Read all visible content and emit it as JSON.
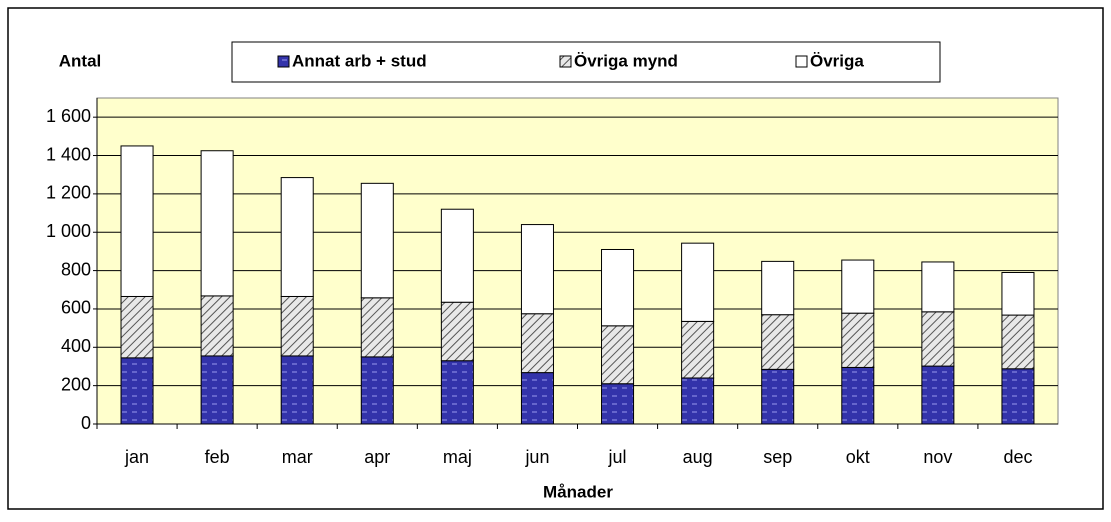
{
  "chart_data": {
    "type": "stacked_bar",
    "y_label": "Antal",
    "x_label": "Månader",
    "categories": [
      "jan",
      "feb",
      "mar",
      "apr",
      "maj",
      "jun",
      "jul",
      "aug",
      "sep",
      "okt",
      "nov",
      "dec"
    ],
    "series": [
      {
        "name": "Annat arb + stud",
        "color": "#3333aa",
        "pattern": "dashes",
        "values": [
          345,
          355,
          355,
          350,
          330,
          268,
          210,
          240,
          285,
          295,
          302,
          288
        ]
      },
      {
        "name": "Övriga mynd",
        "color": "#c0c0c0",
        "pattern": "hatch",
        "values": [
          320,
          313,
          310,
          308,
          305,
          307,
          302,
          295,
          285,
          283,
          283,
          280
        ]
      },
      {
        "name": "Övriga",
        "color": "#ffffff",
        "pattern": "none",
        "values": [
          785,
          757,
          620,
          597,
          485,
          465,
          398,
          408,
          278,
          277,
          260,
          222
        ]
      }
    ],
    "ylim": [
      0,
      1700
    ],
    "yticks": [
      0,
      200,
      400,
      600,
      800,
      {
        "value": 1000,
        "label": "1 000"
      },
      {
        "value": 1200,
        "label": "1 200"
      },
      {
        "value": 1400,
        "label": "1 400"
      },
      {
        "value": 1600,
        "label": "1 600"
      }
    ],
    "grid": true,
    "legend": "top"
  }
}
